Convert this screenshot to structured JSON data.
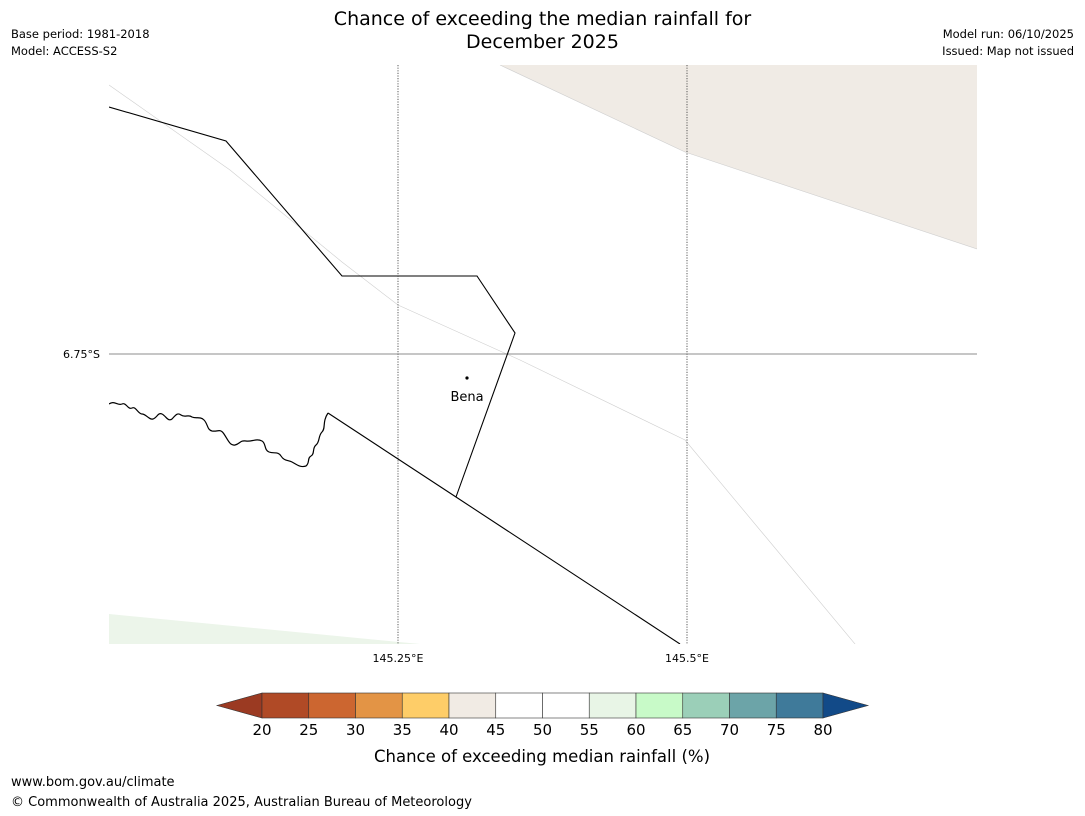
{
  "title": {
    "line1": "Chance of exceeding the median rainfall for",
    "line2": "December 2025"
  },
  "meta": {
    "base_period": "Base period: 1981-2018",
    "model": "Model: ACCESS-S2",
    "model_run": "Model run: 06/10/2025",
    "issued": "Issued: Map not issued"
  },
  "map": {
    "place": "Bena",
    "lat_label": "6.75°S",
    "lon_labels": [
      "145.25°E",
      "145.5°E"
    ]
  },
  "colorbar": {
    "ticks": [
      "20",
      "25",
      "30",
      "35",
      "40",
      "45",
      "50",
      "55",
      "60",
      "65",
      "70",
      "75",
      "80"
    ],
    "colors": {
      "under": "#9b3a22",
      "bins": [
        "#b04a26",
        "#cc6630",
        "#e39445",
        "#fecd68",
        "#f1ebe4",
        "#ffffff",
        "#ffffff",
        "#e8f5e6",
        "#c8fac8",
        "#9bcfb8",
        "#6ca4a8",
        "#3f7a9a"
      ],
      "over": "#124a88"
    },
    "label": "Chance of exceeding median rainfall (%)"
  },
  "footer": {
    "url": "www.bom.gov.au/climate",
    "copyright": "© Commonwealth of Australia 2025, Australian Bureau of Meteorology"
  }
}
